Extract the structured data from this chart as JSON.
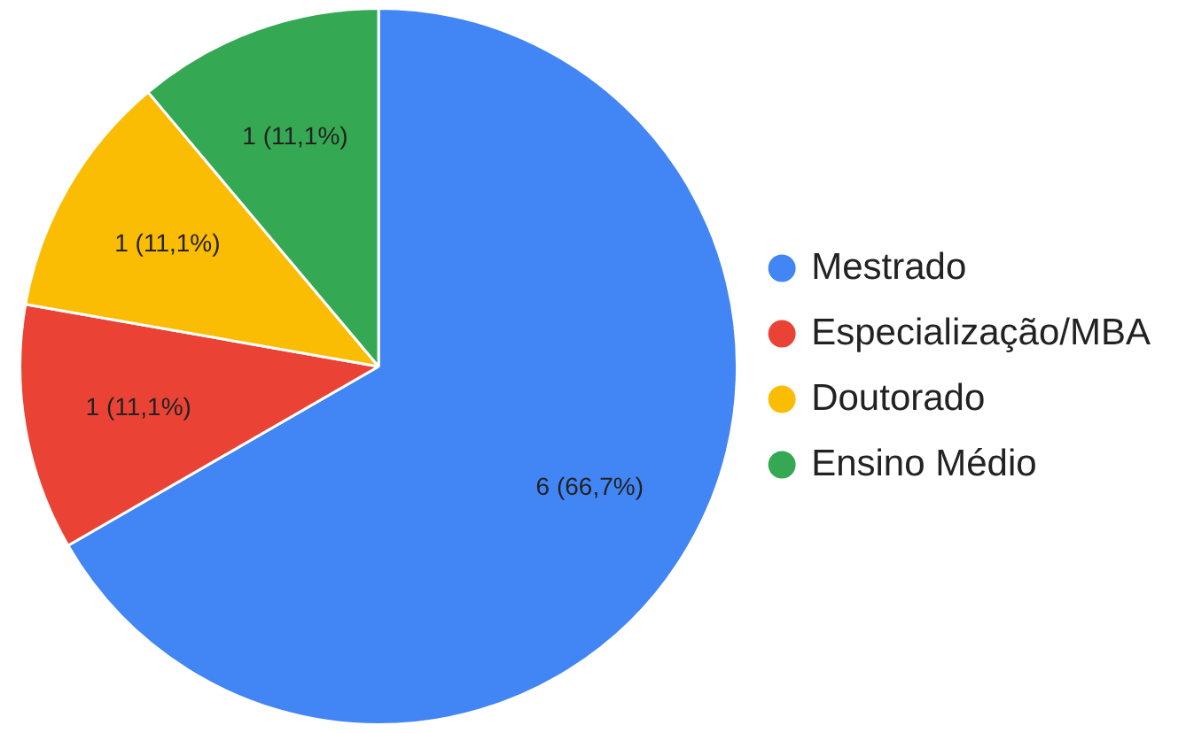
{
  "chart_data": {
    "type": "pie",
    "categories": [
      "Mestrado",
      "Especialização/MBA",
      "Doutorado",
      "Ensino Médio"
    ],
    "values": [
      6,
      1,
      1,
      1
    ],
    "colors": [
      "#4285f4",
      "#ea4335",
      "#fbbc04",
      "#34a853"
    ],
    "value_labels": [
      "6 (66,7%)",
      "1 (11,1%)",
      "1 (11,1%)",
      "1 (11,1%)"
    ],
    "legend": "right"
  }
}
